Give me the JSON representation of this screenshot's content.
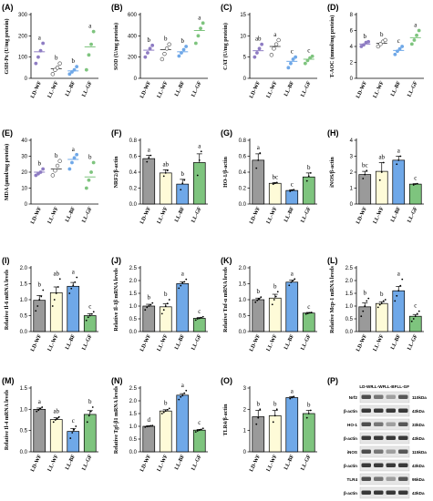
{
  "colors": {
    "LD-WF": "#9a9a9a",
    "LL-WF": "#fefbd8",
    "LL-BF": "#6fa8e8",
    "LL-GF": "#7ec47e",
    "dot_LD": "#8e7cc3",
    "dot_LL-WF": "#ffffff",
    "dot_LL-BF": "#6fa8e8",
    "dot_LL-GF": "#7ec47e"
  },
  "chart_data": [
    {
      "panel": "(A)",
      "type": "scatter",
      "ylabel": "GSH-Px (U/mg protein)",
      "yticks": [
        "0",
        "100",
        "200",
        "300"
      ],
      "ylim": [
        0,
        300
      ],
      "categories": [
        "LD-WF",
        "LL-WF",
        "LL-BF",
        "LL-GF"
      ],
      "means": [
        125,
        45,
        35,
        148
      ],
      "points": [
        [
          70,
          100,
          130,
          165
        ],
        [
          20,
          40,
          50,
          70
        ],
        [
          20,
          30,
          40,
          55
        ],
        [
          40,
          110,
          160,
          220
        ]
      ],
      "sig": [
        "a",
        "b",
        "b",
        "a"
      ]
    },
    {
      "panel": "(B)",
      "type": "scatter",
      "ylabel": "SOD (U/mg protein)",
      "yticks": [
        "0",
        "200",
        "400",
        "600"
      ],
      "ylim": [
        0,
        600
      ],
      "categories": [
        "LD-WF",
        "LL-WF",
        "LL-BF",
        "LL-GF"
      ],
      "means": [
        265,
        270,
        250,
        450
      ],
      "points": [
        [
          200,
          240,
          280,
          310
        ],
        [
          180,
          230,
          280,
          320
        ],
        [
          210,
          240,
          270,
          300
        ],
        [
          330,
          400,
          470,
          520
        ]
      ],
      "sig": [
        "b",
        "b",
        "b",
        "a"
      ]
    },
    {
      "panel": "(C)",
      "type": "scatter",
      "ylabel": "CAT (U/mg protein)",
      "yticks": [
        "0",
        "5",
        "10",
        "15"
      ],
      "ylim": [
        0,
        15
      ],
      "categories": [
        "LD-WF",
        "LL-WF",
        "LL-BF",
        "LL-GF"
      ],
      "means": [
        6.5,
        7.5,
        4,
        4.5
      ],
      "points": [
        [
          5,
          6,
          7,
          8
        ],
        [
          5.5,
          7,
          8,
          9
        ],
        [
          2.5,
          3.5,
          4.5,
          5
        ],
        [
          3.5,
          4.2,
          4.8,
          5.2
        ]
      ],
      "sig": [
        "ab",
        "a",
        "c",
        "c"
      ]
    },
    {
      "panel": "(D)",
      "type": "scatter",
      "ylabel": "T-AOC (mmol/mg protein)",
      "yticks": [
        "0",
        "2",
        "4",
        "6",
        "8"
      ],
      "ylim": [
        0,
        8
      ],
      "categories": [
        "LD-WF",
        "LL-WF",
        "LL-BF",
        "LL-GF"
      ],
      "means": [
        4.3,
        4.4,
        3.5,
        5.1
      ],
      "points": [
        [
          4,
          4.2,
          4.5,
          4.6
        ],
        [
          4,
          4.3,
          4.6,
          4.8
        ],
        [
          3,
          3.4,
          3.7,
          4
        ],
        [
          4.3,
          4.8,
          5.4,
          6
        ]
      ],
      "sig": [
        "b",
        "b",
        "c",
        "a"
      ]
    },
    {
      "panel": "(E)",
      "type": "scatter",
      "ylabel": "MDA (µmol/mg protein)",
      "yticks": [
        "0",
        "10",
        "20",
        "30",
        "40"
      ],
      "ylim": [
        0,
        40
      ],
      "categories": [
        "LD-WF",
        "LL-WF",
        "LL-BF",
        "LL-GF"
      ],
      "means": [
        20,
        22,
        28,
        17
      ],
      "points": [
        [
          18,
          19,
          20,
          22
        ],
        [
          18,
          21,
          24,
          27
        ],
        [
          22,
          26,
          29,
          31
        ],
        [
          10,
          15,
          20,
          26
        ]
      ],
      "sig": [
        "b",
        "b",
        "a",
        "b"
      ]
    },
    {
      "panel": "(F)",
      "type": "bar",
      "ylabel": "NRF2/β-actin",
      "yticks": [
        "0.0",
        "0.2",
        "0.4",
        "0.6",
        "0.8"
      ],
      "ylim": [
        0,
        0.8
      ],
      "categories": [
        "LD-WF",
        "LL-WF",
        "LL-BF",
        "LL-GF"
      ],
      "means": [
        0.57,
        0.39,
        0.25,
        0.52
      ],
      "errors": [
        0.04,
        0.04,
        0.06,
        0.11
      ],
      "points": [
        [
          0.53,
          0.58,
          0.61
        ],
        [
          0.35,
          0.39,
          0.42
        ],
        [
          0.18,
          0.26,
          0.3
        ],
        [
          0.36,
          0.55,
          0.66
        ]
      ],
      "sig": [
        "a",
        "ab",
        "b",
        "a"
      ]
    },
    {
      "panel": "(G)",
      "type": "bar",
      "ylabel": "HO-1/β-actin",
      "yticks": [
        "0.0",
        "0.2",
        "0.4",
        "0.6",
        "0.8"
      ],
      "ylim": [
        0,
        0.8
      ],
      "categories": [
        "LD-WF",
        "LL-WF",
        "LL-BF",
        "LL-GF"
      ],
      "means": [
        0.55,
        0.26,
        0.17,
        0.34
      ],
      "errors": [
        0.08,
        0.01,
        0.01,
        0.05
      ],
      "points": [
        [
          0.45,
          0.55,
          0.64
        ],
        [
          0.25,
          0.26,
          0.27
        ],
        [
          0.16,
          0.17,
          0.18
        ],
        [
          0.29,
          0.35,
          0.39
        ]
      ],
      "sig": [
        "a",
        "bc",
        "c",
        "b"
      ]
    },
    {
      "panel": "(H)",
      "type": "bar",
      "ylabel": "iNOS/β-actin",
      "yticks": [
        "0",
        "1",
        "2",
        "3",
        "4"
      ],
      "ylim": [
        0,
        4
      ],
      "categories": [
        "LD-WF",
        "LL-WF",
        "LL-BF",
        "LL-GF"
      ],
      "means": [
        1.85,
        2.05,
        2.75,
        1.25
      ],
      "errors": [
        0.2,
        0.55,
        0.25,
        0.03
      ],
      "points": [
        [
          1.6,
          1.85,
          2.1
        ],
        [
          1.5,
          2.0,
          2.6
        ],
        [
          2.5,
          2.75,
          3.0
        ],
        [
          1.2,
          1.25,
          1.28
        ]
      ],
      "sig": [
        "bc",
        "ab",
        "a",
        "c"
      ]
    },
    {
      "panel": "(I)",
      "type": "bar",
      "ylabel": "Relative Il-6 mRNA levels",
      "yticks": [
        "0.0",
        "0.5",
        "1.0",
        "1.5",
        "2.0"
      ],
      "ylim": [
        0,
        2
      ],
      "categories": [
        "LD-WF",
        "LL-WF",
        "LL-BF",
        "LL-GF"
      ],
      "means": [
        0.98,
        1.22,
        1.42,
        0.5
      ],
      "errors": [
        0.15,
        0.18,
        0.12,
        0.06
      ],
      "points": [
        [
          0.65,
          0.8,
          1.0,
          1.1,
          1.3
        ],
        [
          0.8,
          1.0,
          1.2,
          1.4,
          1.65
        ],
        [
          1.2,
          1.35,
          1.45,
          1.55,
          1.7
        ],
        [
          0.35,
          0.45,
          0.5,
          0.55,
          0.62
        ]
      ],
      "sig": [
        "b",
        "ab",
        "a",
        "c"
      ]
    },
    {
      "panel": "(J)",
      "type": "bar",
      "ylabel": "Relative Il-1β mRNA levels",
      "yticks": [
        "0.0",
        "0.5",
        "1.0",
        "1.5",
        "2.0",
        "2.5"
      ],
      "ylim": [
        0,
        2.5
      ],
      "categories": [
        "LD-WF",
        "LL-WF",
        "LL-BF",
        "LL-GF"
      ],
      "means": [
        1.0,
        0.97,
        1.88,
        0.52
      ],
      "errors": [
        0.07,
        0.12,
        0.07,
        0.03
      ],
      "points": [
        [
          0.85,
          0.95,
          1.0,
          1.05,
          1.12
        ],
        [
          0.7,
          0.85,
          1.0,
          1.1,
          1.25
        ],
        [
          1.7,
          1.8,
          1.9,
          1.95,
          2.05
        ],
        [
          0.45,
          0.5,
          0.52,
          0.55,
          0.58
        ]
      ],
      "sig": [
        "b",
        "b",
        "a",
        "c"
      ]
    },
    {
      "panel": "(K)",
      "type": "bar",
      "ylabel": "Relative Tnf-α mRNA levels",
      "yticks": [
        "0.0",
        "0.5",
        "1.0",
        "1.5",
        "2.0"
      ],
      "ylim": [
        0,
        2
      ],
      "categories": [
        "LD-WF",
        "LL-WF",
        "LL-BF",
        "LL-GF"
      ],
      "means": [
        1.0,
        1.05,
        1.55,
        0.58
      ],
      "errors": [
        0.05,
        0.12,
        0.06,
        0.02
      ],
      "points": [
        [
          0.92,
          0.98,
          1.02,
          1.08
        ],
        [
          0.85,
          1.0,
          1.1,
          1.25
        ],
        [
          1.45,
          1.55,
          1.6,
          1.65
        ],
        [
          0.55,
          0.57,
          0.59,
          0.6
        ]
      ],
      "sig": [
        "b",
        "b",
        "a",
        "c"
      ]
    },
    {
      "panel": "(L)",
      "type": "bar",
      "ylabel": "Relative Mcp-1 mRNA levels",
      "yticks": [
        "0.0",
        "0.5",
        "1.0",
        "1.5",
        "2.0",
        "2.5"
      ],
      "ylim": [
        0,
        2.5
      ],
      "categories": [
        "LD-WF",
        "LL-WF",
        "LL-BF",
        "LL-GF"
      ],
      "means": [
        0.97,
        1.1,
        1.6,
        0.6
      ],
      "errors": [
        0.15,
        0.07,
        0.17,
        0.07
      ],
      "points": [
        [
          0.6,
          0.8,
          1.0,
          1.2,
          1.3
        ],
        [
          0.95,
          1.05,
          1.1,
          1.2,
          1.25
        ],
        [
          1.2,
          1.4,
          1.6,
          1.8,
          2.05
        ],
        [
          0.4,
          0.5,
          0.6,
          0.7,
          0.8
        ]
      ],
      "sig": [
        "b",
        "b",
        "a",
        "c"
      ]
    },
    {
      "panel": "(M)",
      "type": "bar",
      "ylabel": "Relative Il-4 mRNA levels",
      "yticks": [
        "0.0",
        "0.5",
        "1.0",
        "1.5"
      ],
      "ylim": [
        0,
        1.5
      ],
      "categories": [
        "LD-WF",
        "LL-WF",
        "LL-BF",
        "LL-GF"
      ],
      "means": [
        1.0,
        0.76,
        0.48,
        0.88
      ],
      "errors": [
        0.03,
        0.04,
        0.07,
        0.09
      ],
      "points": [
        [
          0.95,
          0.98,
          1.02,
          1.05
        ],
        [
          0.7,
          0.75,
          0.78,
          0.82
        ],
        [
          0.32,
          0.45,
          0.52,
          0.6
        ],
        [
          0.7,
          0.85,
          0.95,
          1.05
        ]
      ],
      "sig": [
        "a",
        "ab",
        "c",
        "b"
      ]
    },
    {
      "panel": "(N)",
      "type": "bar",
      "ylabel": "Relative Tgf-β1 mRNA levels",
      "yticks": [
        "0.0",
        "0.5",
        "1.0",
        "1.5",
        "2.0",
        "2.5"
      ],
      "ylim": [
        0,
        2.5
      ],
      "categories": [
        "LD-WF",
        "LL-WF",
        "LL-BF",
        "LL-GF"
      ],
      "means": [
        1.0,
        1.6,
        2.22,
        0.85
      ],
      "errors": [
        0.02,
        0.05,
        0.06,
        0.03
      ],
      "points": [
        [
          0.97,
          0.99,
          1.0,
          1.02,
          1.03
        ],
        [
          1.5,
          1.55,
          1.6,
          1.65,
          1.7
        ],
        [
          2.05,
          2.15,
          2.2,
          2.3,
          2.4
        ],
        [
          0.78,
          0.82,
          0.85,
          0.88,
          0.92
        ]
      ],
      "sig": [
        "d",
        "b",
        "a",
        "c"
      ]
    },
    {
      "panel": "(O)",
      "type": "bar",
      "ylabel": "TLR4/β-actin",
      "yticks": [
        "0",
        "1",
        "2",
        "3"
      ],
      "ylim": [
        0,
        3
      ],
      "categories": [
        "LD-WF",
        "LL-WF",
        "LL-BF",
        "LL-GF"
      ],
      "means": [
        1.65,
        1.7,
        2.55,
        1.8
      ],
      "errors": [
        0.3,
        0.25,
        0.05,
        0.15
      ],
      "points": [
        [
          1.3,
          1.6,
          2.0
        ],
        [
          1.4,
          1.7,
          2.0
        ],
        [
          2.5,
          2.55,
          2.6
        ],
        [
          1.6,
          1.8,
          1.95
        ]
      ],
      "sig": [
        "b",
        "b",
        "a",
        "b"
      ]
    }
  ],
  "blot": {
    "panel": "(P)",
    "header": [
      "LD-WF",
      "LL-WF",
      "LL-BF",
      "LL-GF"
    ],
    "rows": [
      {
        "name": "Nrf2",
        "size": "110kDa"
      },
      {
        "name": "β-actin",
        "size": "43kDa"
      },
      {
        "name": "HO-1",
        "size": "33kDa"
      },
      {
        "name": "β-actin",
        "size": "43kDa"
      },
      {
        "name": "iNOS",
        "size": "115kDa"
      },
      {
        "name": "β-actin",
        "size": "43kDa"
      },
      {
        "name": "TLR4",
        "size": "95kDa"
      },
      {
        "name": "β-actin",
        "size": "43kDa"
      }
    ]
  }
}
